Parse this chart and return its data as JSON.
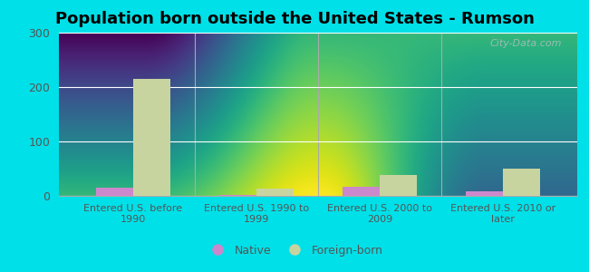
{
  "title": "Population born outside the United States - Rumson",
  "categories": [
    "Entered U.S. before\n1990",
    "Entered U.S. 1990 to\n1999",
    "Entered U.S. 2000 to\n2009",
    "Entered U.S. 2010 or\nlater"
  ],
  "native_values": [
    15,
    2,
    17,
    8
  ],
  "foreign_values": [
    215,
    13,
    38,
    50
  ],
  "native_color": "#cc88cc",
  "foreign_color": "#c8d4a0",
  "bg_color_top": "#c8e8e8",
  "bg_color_bottom": "#e8f8d8",
  "outer_background": "#00e0e8",
  "ylim": [
    0,
    300
  ],
  "yticks": [
    0,
    100,
    200,
    300
  ],
  "bar_width": 0.3,
  "legend_native": "Native",
  "legend_foreign": "Foreign-born",
  "watermark": "City-Data.com"
}
